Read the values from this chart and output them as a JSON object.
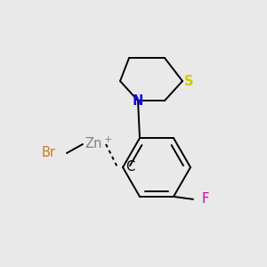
{
  "background_color": "#e9e9e9",
  "bond_color": "#000000",
  "bond_width": 1.4,
  "atom_labels": {
    "Br": {
      "color": "#cc7722",
      "fontsize": 10.5
    },
    "Zn": {
      "color": "#808080",
      "fontsize": 10.5
    },
    "C": {
      "color": "#000000",
      "fontsize": 10.5
    },
    "N": {
      "color": "#1010dd",
      "fontsize": 10.5
    },
    "S": {
      "color": "#cccc00",
      "fontsize": 10.5
    },
    "F": {
      "color": "#cc00aa",
      "fontsize": 10.5
    }
  }
}
